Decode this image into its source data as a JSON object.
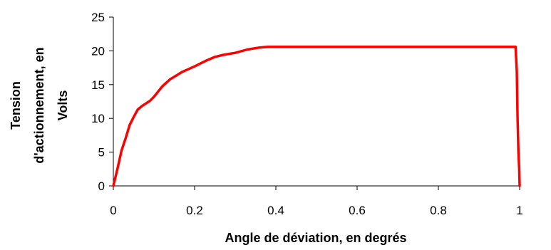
{
  "chart_data": {
    "type": "line",
    "title": "",
    "xlabel": "Angle de déviation, en degrés",
    "ylabel": [
      "Tension",
      "d'actionnement, en",
      "Volts"
    ],
    "xlim": [
      0,
      1
    ],
    "ylim": [
      0,
      25
    ],
    "x_ticks": [
      "0",
      "0.2",
      "0.4",
      "0.6",
      "0.8",
      "1"
    ],
    "y_ticks": [
      "0",
      "5",
      "10",
      "15",
      "20",
      "25"
    ],
    "grid": false,
    "legend": "none",
    "series": [
      {
        "color": "#ff0000",
        "x": [
          0,
          0.01,
          0.02,
          0.03,
          0.04,
          0.05,
          0.06,
          0.07,
          0.08,
          0.09,
          0.1,
          0.12,
          0.14,
          0.17,
          0.2,
          0.23,
          0.25,
          0.27,
          0.3,
          0.33,
          0.36,
          0.38,
          0.5,
          0.7,
          0.9,
          0.99,
          0.993,
          0.995,
          0.997,
          0.999,
          1.0
        ],
        "y": [
          0,
          2.5,
          5.2,
          7.0,
          9.0,
          10.2,
          11.3,
          11.8,
          12.2,
          12.6,
          13.2,
          14.7,
          15.8,
          16.9,
          17.7,
          18.6,
          19.1,
          19.4,
          19.7,
          20.2,
          20.5,
          20.6,
          20.6,
          20.6,
          20.6,
          20.6,
          17.0,
          10.0,
          5.0,
          2.5,
          0
        ]
      }
    ]
  }
}
